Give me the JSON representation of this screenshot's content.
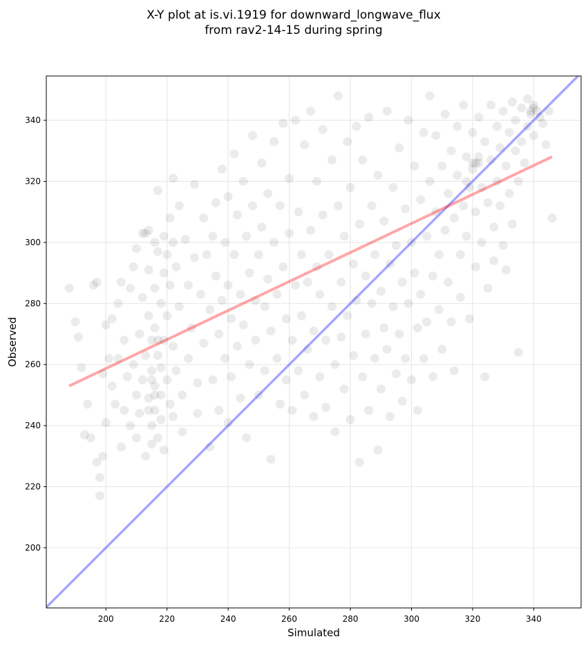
{
  "chart_data": {
    "type": "scatter",
    "title": "X-Y plot at is.vi.1919 for downward_longwave_flux",
    "subtitle": "from rav2-14-15 during spring",
    "xlabel": "Simulated",
    "ylabel": "Observed",
    "xlim": [
      180.5,
      355.5
    ],
    "ylim": [
      180.3,
      354.5
    ],
    "xticks": [
      200,
      220,
      240,
      260,
      280,
      300,
      320,
      340
    ],
    "yticks": [
      200,
      220,
      240,
      260,
      280,
      300,
      320,
      340
    ],
    "grid": true,
    "colors": {
      "points": "#000000",
      "one_to_one": "#0000ff",
      "fit": "#ff0000"
    },
    "one_to_one_line": {
      "slope": 1,
      "intercept": 0
    },
    "fit_line": {
      "x_range": [
        188,
        346
      ],
      "slope": 0.475,
      "intercept": 163.7
    },
    "points": [
      [
        188,
        285
      ],
      [
        190,
        274
      ],
      [
        191,
        269
      ],
      [
        192,
        259
      ],
      [
        193,
        237
      ],
      [
        194,
        247
      ],
      [
        195,
        236
      ],
      [
        196,
        286
      ],
      [
        197,
        287
      ],
      [
        197,
        228
      ],
      [
        198,
        223
      ],
      [
        198,
        217
      ],
      [
        199,
        230
      ],
      [
        199,
        257
      ],
      [
        200,
        273
      ],
      [
        200,
        241
      ],
      [
        201,
        262
      ],
      [
        202,
        253
      ],
      [
        202,
        275
      ],
      [
        203,
        247
      ],
      [
        204,
        262
      ],
      [
        204,
        280
      ],
      [
        205,
        287
      ],
      [
        205,
        233
      ],
      [
        206,
        245
      ],
      [
        206,
        268
      ],
      [
        207,
        256
      ],
      [
        208,
        285
      ],
      [
        208,
        240
      ],
      [
        209,
        292
      ],
      [
        209,
        260
      ],
      [
        210,
        298
      ],
      [
        210,
        250
      ],
      [
        210,
        236
      ],
      [
        211,
        270
      ],
      [
        211,
        244
      ],
      [
        212,
        303
      ],
      [
        212,
        282
      ],
      [
        212,
        255
      ],
      [
        213,
        230
      ],
      [
        213,
        263
      ],
      [
        214,
        304
      ],
      [
        214,
        291
      ],
      [
        214,
        276
      ],
      [
        214,
        249
      ],
      [
        215,
        240
      ],
      [
        215,
        234
      ],
      [
        215,
        258
      ],
      [
        215,
        268
      ],
      [
        216,
        300
      ],
      [
        216,
        285
      ],
      [
        216,
        272
      ],
      [
        216,
        253
      ],
      [
        216,
        245
      ],
      [
        217,
        317
      ],
      [
        217,
        297
      ],
      [
        217,
        263
      ],
      [
        217,
        236
      ],
      [
        218,
        280
      ],
      [
        218,
        259
      ],
      [
        218,
        250
      ],
      [
        218,
        242
      ],
      [
        219,
        302
      ],
      [
        219,
        290
      ],
      [
        219,
        268
      ],
      [
        219,
        232
      ],
      [
        220,
        296
      ],
      [
        220,
        276
      ],
      [
        220,
        255
      ],
      [
        221,
        308
      ],
      [
        221,
        286
      ],
      [
        221,
        247
      ],
      [
        222,
        321
      ],
      [
        222,
        300
      ],
      [
        222,
        266
      ],
      [
        222,
        243
      ],
      [
        223,
        292
      ],
      [
        223,
        258
      ],
      [
        224,
        279
      ],
      [
        224,
        312
      ],
      [
        225,
        250
      ],
      [
        225,
        238
      ],
      [
        216,
        250
      ],
      [
        215,
        255
      ],
      [
        214,
        245
      ],
      [
        217,
        268
      ],
      [
        213,
        303
      ],
      [
        226,
        301
      ],
      [
        227,
        286
      ],
      [
        227,
        262
      ],
      [
        228,
        272
      ],
      [
        229,
        319
      ],
      [
        229,
        295
      ],
      [
        230,
        254
      ],
      [
        230,
        244
      ],
      [
        231,
        283
      ],
      [
        232,
        308
      ],
      [
        232,
        267
      ],
      [
        233,
        296
      ],
      [
        234,
        233
      ],
      [
        234,
        278
      ],
      [
        235,
        302
      ],
      [
        235,
        255
      ],
      [
        236,
        313
      ],
      [
        236,
        289
      ],
      [
        237,
        270
      ],
      [
        237,
        245
      ],
      [
        238,
        324
      ],
      [
        238,
        281
      ],
      [
        239,
        300
      ],
      [
        239,
        262
      ],
      [
        240,
        315
      ],
      [
        240,
        286
      ],
      [
        240,
        241
      ],
      [
        241,
        275
      ],
      [
        241,
        256
      ],
      [
        242,
        329
      ],
      [
        242,
        296
      ],
      [
        243,
        309
      ],
      [
        243,
        266
      ],
      [
        244,
        283
      ],
      [
        244,
        249
      ],
      [
        245,
        320
      ],
      [
        245,
        273
      ],
      [
        246,
        302
      ],
      [
        246,
        236
      ],
      [
        247,
        290
      ],
      [
        247,
        260
      ],
      [
        248,
        335
      ],
      [
        248,
        312
      ],
      [
        249,
        281
      ],
      [
        249,
        268
      ],
      [
        250,
        296
      ],
      [
        250,
        250
      ],
      [
        251,
        326
      ],
      [
        251,
        305
      ],
      [
        252,
        279
      ],
      [
        252,
        258
      ],
      [
        253,
        316
      ],
      [
        253,
        288
      ],
      [
        254,
        271
      ],
      [
        254,
        229
      ],
      [
        255,
        333
      ],
      [
        255,
        300
      ],
      [
        256,
        283
      ],
      [
        256,
        262
      ],
      [
        257,
        312
      ],
      [
        257,
        247
      ],
      [
        258,
        339
      ],
      [
        258,
        292
      ],
      [
        259,
        275
      ],
      [
        259,
        255
      ],
      [
        260,
        321
      ],
      [
        260,
        303
      ],
      [
        261,
        268
      ],
      [
        261,
        245
      ],
      [
        262,
        340
      ],
      [
        262,
        286
      ],
      [
        263,
        310
      ],
      [
        263,
        258
      ],
      [
        264,
        296
      ],
      [
        264,
        276
      ],
      [
        265,
        332
      ],
      [
        265,
        250
      ],
      [
        266,
        287
      ],
      [
        266,
        265
      ],
      [
        267,
        343
      ],
      [
        267,
        304
      ],
      [
        268,
        271
      ],
      [
        268,
        243
      ],
      [
        269,
        320
      ],
      [
        269,
        292
      ],
      [
        270,
        283
      ],
      [
        270,
        256
      ],
      [
        271,
        337
      ],
      [
        271,
        309
      ],
      [
        272,
        268
      ],
      [
        272,
        246
      ],
      [
        273,
        296
      ],
      [
        274,
        327
      ],
      [
        274,
        279
      ],
      [
        275,
        260
      ],
      [
        275,
        238
      ],
      [
        276,
        348
      ],
      [
        276,
        312
      ],
      [
        277,
        287
      ],
      [
        277,
        269
      ],
      [
        278,
        302
      ],
      [
        278,
        252
      ],
      [
        279,
        333
      ],
      [
        279,
        276
      ],
      [
        280,
        318
      ],
      [
        280,
        242
      ],
      [
        281,
        293
      ],
      [
        281,
        263
      ],
      [
        282,
        338
      ],
      [
        282,
        281
      ],
      [
        283,
        228
      ],
      [
        283,
        306
      ],
      [
        284,
        256
      ],
      [
        284,
        327
      ],
      [
        285,
        289
      ],
      [
        285,
        270
      ],
      [
        286,
        341
      ],
      [
        286,
        245
      ],
      [
        287,
        312
      ],
      [
        287,
        280
      ],
      [
        288,
        296
      ],
      [
        288,
        262
      ],
      [
        289,
        232
      ],
      [
        289,
        322
      ],
      [
        290,
        284
      ],
      [
        290,
        252
      ],
      [
        291,
        307
      ],
      [
        291,
        272
      ],
      [
        292,
        343
      ],
      [
        292,
        265
      ],
      [
        293,
        293
      ],
      [
        293,
        243
      ],
      [
        294,
        318
      ],
      [
        294,
        279
      ],
      [
        295,
        257
      ],
      [
        295,
        299
      ],
      [
        296,
        331
      ],
      [
        296,
        270
      ],
      [
        297,
        287
      ],
      [
        297,
        248
      ],
      [
        298,
        311
      ],
      [
        298,
        262
      ],
      [
        299,
        340
      ],
      [
        299,
        280
      ],
      [
        300,
        300
      ],
      [
        300,
        255
      ],
      [
        301,
        325
      ],
      [
        301,
        290
      ],
      [
        302,
        272
      ],
      [
        302,
        245
      ],
      [
        303,
        314
      ],
      [
        303,
        283
      ],
      [
        304,
        336
      ],
      [
        304,
        262
      ],
      [
        305,
        302
      ],
      [
        305,
        274
      ],
      [
        306,
        348
      ],
      [
        306,
        320
      ],
      [
        307,
        289
      ],
      [
        307,
        256
      ],
      [
        308,
        310
      ],
      [
        308,
        335
      ],
      [
        309,
        278
      ],
      [
        309,
        296
      ],
      [
        310,
        325
      ],
      [
        310,
        265
      ],
      [
        311,
        342
      ],
      [
        311,
        304
      ],
      [
        312,
        316
      ],
      [
        312,
        287
      ],
      [
        313,
        330
      ],
      [
        313,
        274
      ],
      [
        314,
        308
      ],
      [
        314,
        258
      ],
      [
        315,
        338
      ],
      [
        315,
        322
      ],
      [
        316,
        296
      ],
      [
        316,
        282
      ],
      [
        317,
        345
      ],
      [
        317,
        312
      ],
      [
        318,
        328
      ],
      [
        318,
        302
      ],
      [
        319,
        318
      ],
      [
        319,
        275
      ],
      [
        320,
        336
      ],
      [
        320,
        326
      ],
      [
        321,
        310
      ],
      [
        321,
        292
      ],
      [
        322,
        341
      ],
      [
        322,
        326
      ],
      [
        323,
        318
      ],
      [
        323,
        300
      ],
      [
        324,
        333
      ],
      [
        324,
        256
      ],
      [
        325,
        313
      ],
      [
        325,
        285
      ],
      [
        326,
        345
      ],
      [
        326,
        327
      ],
      [
        327,
        305
      ],
      [
        327,
        294
      ],
      [
        328,
        338
      ],
      [
        328,
        320
      ],
      [
        329,
        331
      ],
      [
        329,
        312
      ],
      [
        330,
        343
      ],
      [
        330,
        299
      ],
      [
        331,
        325
      ],
      [
        331,
        291
      ],
      [
        332,
        336
      ],
      [
        332,
        316
      ],
      [
        333,
        346
      ],
      [
        333,
        306
      ],
      [
        334,
        330
      ],
      [
        334,
        340
      ],
      [
        335,
        320
      ],
      [
        335,
        264
      ],
      [
        336,
        344
      ],
      [
        336,
        333
      ],
      [
        337,
        326
      ],
      [
        338,
        347
      ],
      [
        338,
        338
      ],
      [
        339,
        343
      ],
      [
        340,
        345
      ],
      [
        340,
        335
      ],
      [
        341,
        343
      ],
      [
        342,
        341
      ],
      [
        343,
        339
      ],
      [
        344,
        332
      ],
      [
        345,
        343
      ],
      [
        346,
        308
      ],
      [
        321,
        326
      ],
      [
        320,
        324
      ],
      [
        340,
        344
      ],
      [
        339,
        342
      ],
      [
        322,
        328
      ],
      [
        318,
        320
      ]
    ]
  }
}
